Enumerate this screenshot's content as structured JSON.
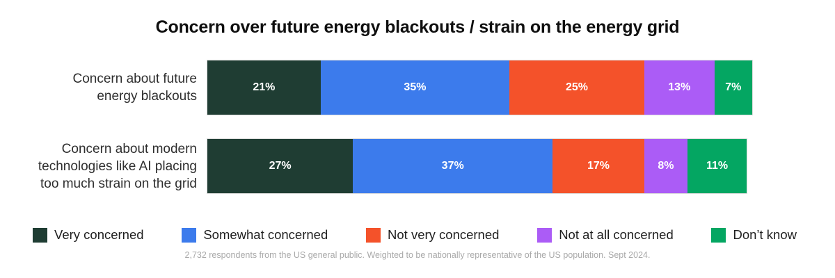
{
  "footnote": "2,732 respondents from the US general public. Weighted to  be nationally representative of the US population. Sept 2024.",
  "chart_data": {
    "type": "bar",
    "variant": "horizontal-stacked",
    "title": "Concern over future energy blackouts / strain on the energy grid",
    "categories": [
      "Concern about future energy blackouts",
      "Concern about modern technologies like AI placing too much strain on the grid"
    ],
    "category_lines": [
      [
        "Concern about future",
        "energy blackouts"
      ],
      [
        "Concern about modern",
        "technologies like AI placing",
        "too much strain on the grid"
      ]
    ],
    "series": [
      {
        "name": "Very concerned",
        "color": "#1f3d33",
        "values": [
          21,
          27
        ]
      },
      {
        "name": "Somewhat concerned",
        "color": "#3c7bec",
        "values": [
          35,
          37
        ]
      },
      {
        "name": "Not very concerned",
        "color": "#f4522a",
        "values": [
          25,
          17
        ]
      },
      {
        "name": "Not at all concerned",
        "color": "#ab5cf6",
        "values": [
          13,
          8
        ]
      },
      {
        "name": "Don’t know",
        "color": "#04a662",
        "values": [
          7,
          11
        ]
      }
    ],
    "value_suffix": "%",
    "xlim": [
      0,
      101
    ],
    "grid": false,
    "legend_position": "bottom",
    "text_color_on_bars": "#ffffff"
  }
}
